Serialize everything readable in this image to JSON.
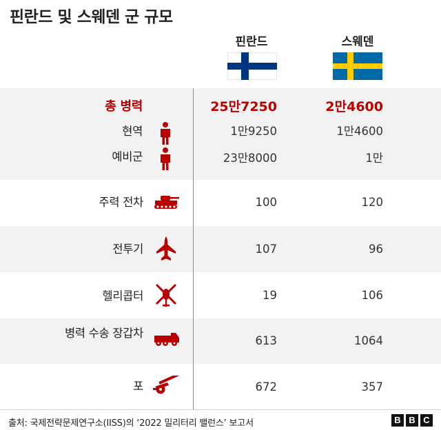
{
  "title": "핀란드 및 스웨덴 군 규모",
  "colors": {
    "accent": "#b80000",
    "band": "#f2f2f2",
    "finland_blue": "#003580",
    "sweden_blue": "#006aa7",
    "sweden_yellow": "#fecc00"
  },
  "columns": [
    {
      "name": "핀란드",
      "flag": "finland-flag"
    },
    {
      "name": "스웨덴",
      "flag": "sweden-flag"
    }
  ],
  "chart_data": {
    "type": "table",
    "title": "핀란드 및 스웨덴 군 규모",
    "columns": [
      "핀란드",
      "스웨덴"
    ],
    "rows": [
      {
        "label": "총 병력",
        "icon": "",
        "finland": "25만7250",
        "sweden": "2만4600",
        "finland_value": 257250,
        "sweden_value": 24600
      },
      {
        "label": "현역",
        "icon": "soldier-icon",
        "finland": "1만9250",
        "sweden": "1만4600",
        "finland_value": 19250,
        "sweden_value": 14600
      },
      {
        "label": "예비군",
        "icon": "reservist-icon",
        "finland": "23만8000",
        "sweden": "1만",
        "finland_value": 238000,
        "sweden_value": 10000
      },
      {
        "label": "주력 전차",
        "icon": "tank-icon",
        "finland": "100",
        "sweden": "120",
        "finland_value": 100,
        "sweden_value": 120
      },
      {
        "label": "전투기",
        "icon": "fighter-jet-icon",
        "finland": "107",
        "sweden": "96",
        "finland_value": 107,
        "sweden_value": 96
      },
      {
        "label": "헬리콥터",
        "icon": "helicopter-icon",
        "finland": "19",
        "sweden": "106",
        "finland_value": 19,
        "sweden_value": 106
      },
      {
        "label": "병력 수송 장갑차",
        "icon": "armored-vehicle-icon",
        "finland": "613",
        "sweden": "1064",
        "finland_value": 613,
        "sweden_value": 1064
      },
      {
        "label": "포",
        "icon": "artillery-icon",
        "finland": "672",
        "sweden": "357",
        "finland_value": 672,
        "sweden_value": 357
      }
    ]
  },
  "footer": {
    "source": "출처: 국제전략문제연구소(IISS)의 ‘2022 밀리터리 밸런스’ 보고서",
    "logo_letters": [
      "B",
      "B",
      "C"
    ]
  }
}
